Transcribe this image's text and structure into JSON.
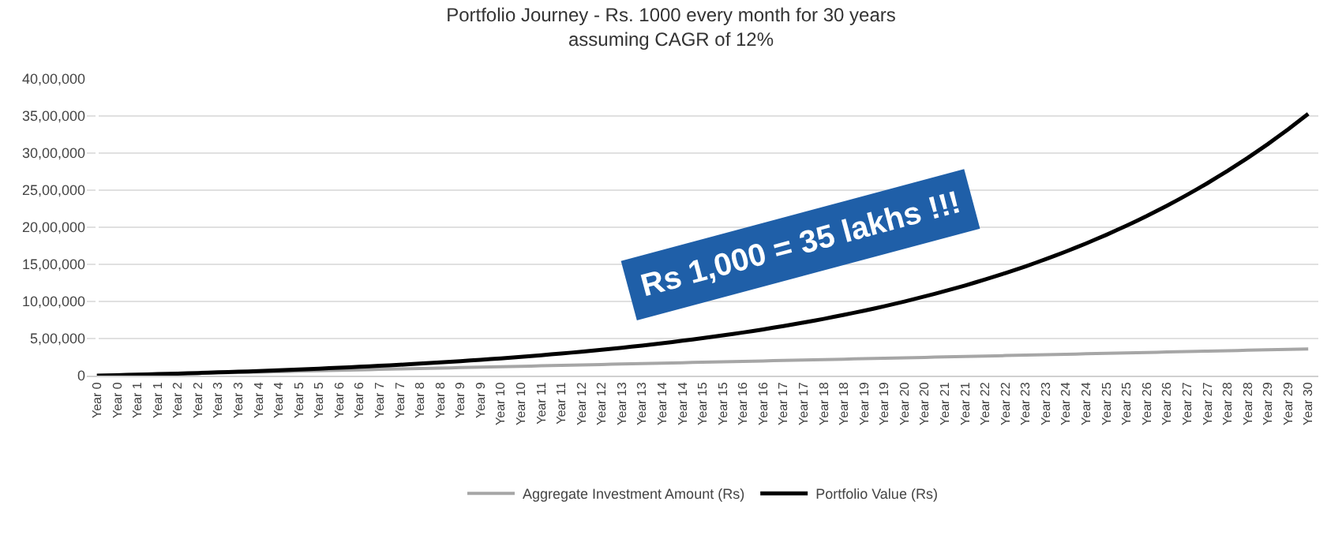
{
  "chart_data": {
    "type": "line",
    "title": "Portfolio Journey - Rs. 1000 every month for 30 years\nassuming CAGR of 12%",
    "categories": [
      "Year 0",
      "Year 0",
      "Year 1",
      "Year 1",
      "Year 2",
      "Year 2",
      "Year 3",
      "Year 3",
      "Year 4",
      "Year 4",
      "Year 5",
      "Year 5",
      "Year 6",
      "Year 6",
      "Year 7",
      "Year 7",
      "Year 8",
      "Year 8",
      "Year 9",
      "Year 9",
      "Year 10",
      "Year 10",
      "Year 11",
      "Year 11",
      "Year 12",
      "Year 12",
      "Year 13",
      "Year 13",
      "Year 14",
      "Year 14",
      "Year 15",
      "Year 15",
      "Year 16",
      "Year 16",
      "Year 17",
      "Year 17",
      "Year 18",
      "Year 18",
      "Year 19",
      "Year 19",
      "Year 20",
      "Year 20",
      "Year 21",
      "Year 21",
      "Year 22",
      "Year 22",
      "Year 23",
      "Year 23",
      "Year 24",
      "Year 24",
      "Year 25",
      "Year 25",
      "Year 26",
      "Year 26",
      "Year 27",
      "Year 27",
      "Year 28",
      "Year 28",
      "Year 29",
      "Year 29",
      "Year 30"
    ],
    "series": [
      {
        "name": "Aggregate Investment Amount (Rs)",
        "color": "#a6a6a6",
        "values": [
          0,
          6000,
          12000,
          18000,
          24000,
          30000,
          36000,
          42000,
          48000,
          54000,
          60000,
          66000,
          72000,
          78000,
          84000,
          90000,
          96000,
          102000,
          108000,
          114000,
          120000,
          126000,
          132000,
          138000,
          144000,
          150000,
          156000,
          162000,
          168000,
          174000,
          180000,
          186000,
          192000,
          198000,
          204000,
          210000,
          216000,
          222000,
          228000,
          234000,
          240000,
          246000,
          252000,
          258000,
          264000,
          270000,
          276000,
          282000,
          288000,
          294000,
          300000,
          306000,
          312000,
          318000,
          324000,
          330000,
          336000,
          342000,
          348000,
          354000,
          360000
        ]
      },
      {
        "name": "Portfolio Value (Rs)",
        "color": "#000000",
        "values": [
          0,
          6000,
          13000,
          20000,
          27000,
          35000,
          44000,
          52000,
          62000,
          72000,
          83000,
          94000,
          106000,
          119000,
          132000,
          146000,
          162000,
          178000,
          195000,
          213000,
          232000,
          253000,
          275000,
          298000,
          322000,
          348000,
          376000,
          405000,
          436000,
          470000,
          505000,
          542000,
          581000,
          623000,
          668000,
          715000,
          765000,
          819000,
          875000,
          935000,
          999000,
          1067000,
          1139000,
          1215000,
          1296000,
          1382000,
          1473000,
          1570000,
          1673000,
          1782000,
          1898000,
          2021000,
          2151000,
          2290000,
          2437000,
          2593000,
          2759000,
          2935000,
          3121000,
          3320000,
          3530000
        ]
      }
    ],
    "ylim": [
      0,
      4000000
    ],
    "yticks": [
      {
        "value": 0,
        "label": "0"
      },
      {
        "value": 500000,
        "label": "5,00,000"
      },
      {
        "value": 1000000,
        "label": "10,00,000"
      },
      {
        "value": 1500000,
        "label": "15,00,000"
      },
      {
        "value": 2000000,
        "label": "20,00,000"
      },
      {
        "value": 2500000,
        "label": "25,00,000"
      },
      {
        "value": 3000000,
        "label": "30,00,000"
      },
      {
        "value": 3500000,
        "label": "35,00,000"
      },
      {
        "value": 4000000,
        "label": "40,00,000"
      }
    ],
    "grid": "y",
    "legend": "bottom",
    "marker": "none",
    "line_style": "solid",
    "annotations": [
      "Rs 1,000 = 35 lakhs !!!"
    ]
  }
}
